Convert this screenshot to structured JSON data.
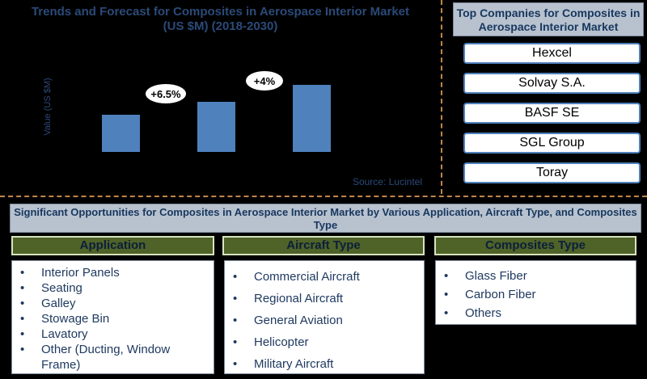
{
  "chart_data": {
    "type": "bar",
    "title": "Trends and Forecast for Composites in Aerospace Interior Market",
    "subtitle": "(US $M) (2018-2030)",
    "ylabel": "Value (US $M)",
    "categories": [
      "",
      "",
      ""
    ],
    "values": [
      46,
      62,
      83
    ],
    "ylim": [
      0,
      100
    ],
    "annotations": [
      "+6.5%",
      "+4%"
    ],
    "source": "Source: Lucintel",
    "bar_color": "#4f81bd"
  },
  "top_companies": {
    "title": "Top Companies  for Composites in Aerospace Interior  Market",
    "items": [
      "Hexcel",
      "Solvay S.A.",
      "BASF SE",
      "SGL Group",
      "Toray"
    ]
  },
  "opportunities": {
    "title": "Significant Opportunities  for Composites in Aerospace Interior Market by Various Application, Aircraft Type, and   Composites Type",
    "application": {
      "header": "Application",
      "items": [
        "Interior Panels",
        "Seating",
        "Galley",
        "Stowage Bin",
        "Lavatory",
        "Other (Ducting, Window Frame)"
      ]
    },
    "aircraft_type": {
      "header": "Aircraft Type",
      "items": [
        "Commercial Aircraft",
        "Regional Aircraft",
        "General Aviation",
        "Helicopter",
        "Military Aircraft"
      ]
    },
    "composites_type": {
      "header": "Composites Type",
      "items": [
        "Glass Fiber",
        "Carbon Fiber",
        "Others"
      ]
    }
  }
}
